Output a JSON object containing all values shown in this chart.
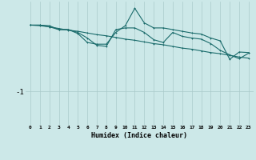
{
  "xlabel": "Humidex (Indice chaleur)",
  "bg_color": "#cce8e8",
  "line_color": "#1a6b6b",
  "grid_color": "#aacaca",
  "x": [
    0,
    1,
    2,
    3,
    4,
    5,
    6,
    7,
    8,
    9,
    10,
    11,
    12,
    13,
    14,
    15,
    16,
    17,
    18,
    19,
    20,
    21,
    22,
    23
  ],
  "line1": [
    0.18,
    0.18,
    0.17,
    0.1,
    0.1,
    0.03,
    -0.13,
    -0.16,
    -0.16,
    0.05,
    0.17,
    0.48,
    0.22,
    0.13,
    0.13,
    0.1,
    0.07,
    0.04,
    0.02,
    -0.05,
    -0.1,
    -0.43,
    -0.3,
    -0.31
  ],
  "line2": [
    0.18,
    0.18,
    0.15,
    0.1,
    0.1,
    0.05,
    -0.05,
    -0.18,
    -0.2,
    0.1,
    0.13,
    0.13,
    0.05,
    -0.08,
    -0.13,
    0.05,
    -0.02,
    -0.05,
    -0.07,
    -0.15,
    -0.27,
    -0.35,
    -0.42,
    -0.32
  ],
  "line3": [
    0.18,
    0.17,
    0.15,
    0.12,
    0.09,
    0.07,
    0.04,
    0.01,
    -0.01,
    -0.04,
    -0.07,
    -0.09,
    -0.12,
    -0.15,
    -0.17,
    -0.2,
    -0.23,
    -0.25,
    -0.28,
    -0.31,
    -0.33,
    -0.36,
    -0.39,
    -0.41
  ],
  "ylim": [
    -1.6,
    0.6
  ],
  "yticks": [
    -1
  ],
  "xlim": [
    -0.5,
    23.5
  ]
}
